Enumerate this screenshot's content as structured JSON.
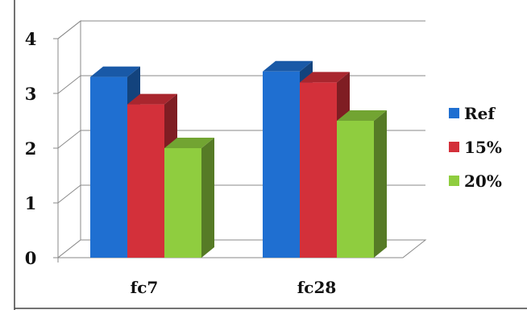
{
  "chart_data": {
    "type": "bar",
    "categories": [
      "fc7",
      "fc28"
    ],
    "series": [
      {
        "name": "Ref",
        "values": [
          3.3,
          3.4
        ],
        "color": "#1f6fd1"
      },
      {
        "name": "15%",
        "values": [
          2.8,
          3.2
        ],
        "color": "#d3303a"
      },
      {
        "name": "20%",
        "values": [
          2.0,
          2.5
        ],
        "color": "#8fcd3f"
      }
    ],
    "y_ticks": [
      "0",
      "1",
      "2",
      "3",
      "4"
    ],
    "ylim": [
      0,
      4
    ],
    "grid": true,
    "three_d": true,
    "legend_position": "right"
  }
}
